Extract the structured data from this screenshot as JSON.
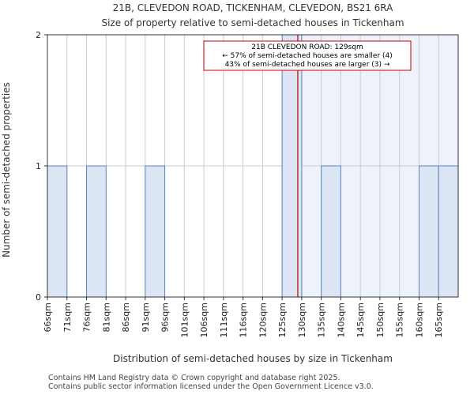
{
  "chart_data": {
    "type": "bar",
    "title_line1": "21B, CLEVEDON ROAD, TICKENHAM, CLEVEDON, BS21 6RA",
    "title_line2": "Size of property relative to semi-detached houses in Tickenham",
    "xlabel": "Distribution of semi-detached houses by size in Tickenham",
    "ylabel": "Number of semi-detached properties",
    "categories": [
      "66sqm",
      "71sqm",
      "76sqm",
      "81sqm",
      "86sqm",
      "91sqm",
      "96sqm",
      "101sqm",
      "106sqm",
      "111sqm",
      "116sqm",
      "120sqm",
      "125sqm",
      "130sqm",
      "135sqm",
      "140sqm",
      "145sqm",
      "150sqm",
      "155sqm",
      "160sqm",
      "165sqm"
    ],
    "values": [
      1,
      0,
      1,
      0,
      0,
      1,
      0,
      0,
      0,
      0,
      0,
      0,
      2,
      0,
      1,
      0,
      0,
      0,
      0,
      1,
      1
    ],
    "ylim": [
      0,
      2
    ],
    "yticks": [
      0,
      1,
      2
    ],
    "marker_value_sqm": 129,
    "marker_bin_index": 12.8,
    "annotation": {
      "line1": "21B CLEVEDON ROAD: 129sqm",
      "line2": "← 57% of semi-detached houses are smaller (4)",
      "line3": "43% of semi-detached houses are larger (3) →"
    },
    "colors": {
      "bar_fill": "#dbe5f3",
      "bar_stroke": "#5b84c4",
      "marker": "#c00000",
      "shade": "#eef2fb",
      "grid": "#cccccc"
    }
  },
  "footer": {
    "line1": "Contains HM Land Registry data © Crown copyright and database right 2025.",
    "line2": "Contains public sector information licensed under the Open Government Licence v3.0."
  }
}
